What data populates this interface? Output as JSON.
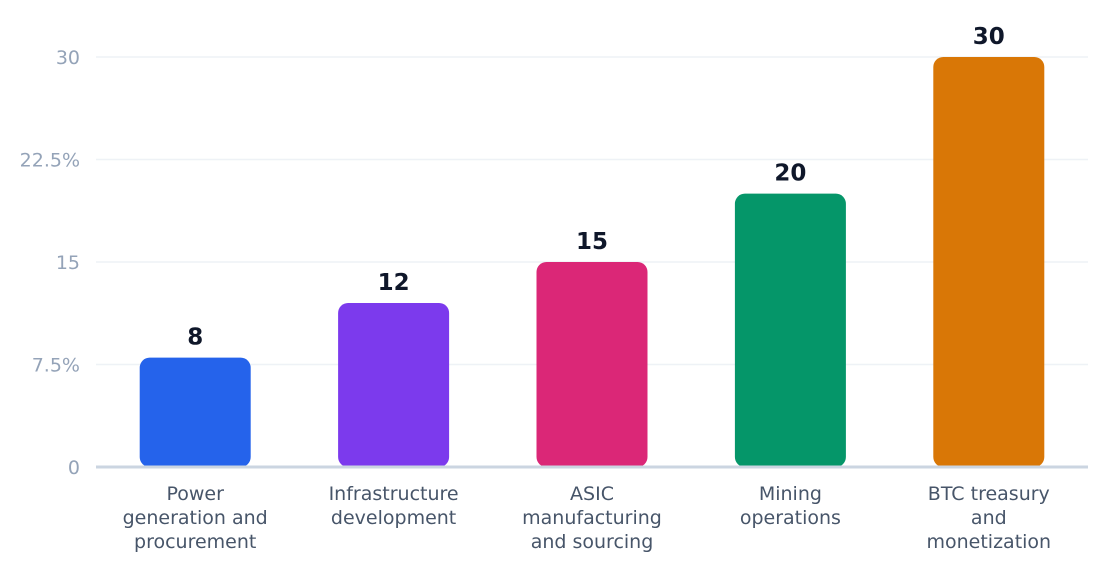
{
  "chart_data": {
    "type": "bar",
    "categories": [
      [
        "Power",
        "generation and",
        "procurement"
      ],
      [
        "Infrastructure",
        "development"
      ],
      [
        "ASIC",
        "manufacturing",
        "and sourcing"
      ],
      [
        "Mining",
        "operations"
      ],
      [
        "BTC treasury",
        "and",
        "monetization"
      ]
    ],
    "values": [
      8,
      12,
      15,
      20,
      30
    ],
    "data_labels": [
      "8",
      "12",
      "15",
      "20",
      "30"
    ],
    "colors": [
      "#2563eb",
      "#7c3aed",
      "#db2777",
      "#059669",
      "#d97706"
    ],
    "ylim": [
      0,
      30
    ],
    "yticks": [
      {
        "value": 0,
        "label": "0"
      },
      {
        "value": 7.5,
        "label": "7.5%"
      },
      {
        "value": 15,
        "label": "15"
      },
      {
        "value": 22.5,
        "label": "22.5%"
      },
      {
        "value": 30,
        "label": "30"
      }
    ],
    "grid": true,
    "title": "",
    "xlabel": "",
    "ylabel": ""
  }
}
